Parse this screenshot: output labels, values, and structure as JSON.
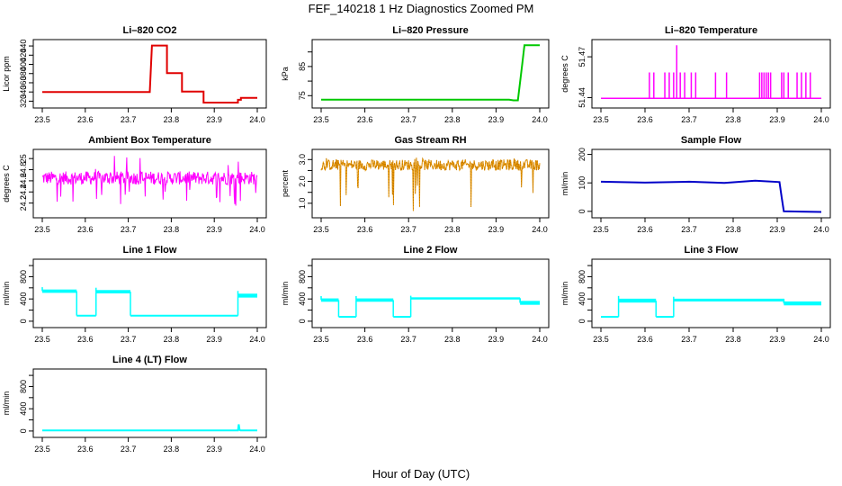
{
  "figure": {
    "title": "FEF_140218  1 Hz Diagnostics Zoomed PM",
    "xlabel": "Hour of Day (UTC)"
  },
  "chart_data": [
    {
      "type": "line",
      "title": "Li–820 CO2",
      "ylabel": "Licor ppm",
      "color": "#e00000",
      "xlim": [
        23.5,
        24.0
      ],
      "ylim": [
        313,
        446
      ],
      "yticks": [
        320,
        340,
        360,
        380,
        400,
        420,
        440
      ],
      "xticks": [
        "23.5",
        "23.6",
        "23.7",
        "23.8",
        "23.9",
        "24.0"
      ],
      "series": [
        {
          "x": [
            23.5,
            23.75,
            23.755,
            23.79,
            23.79,
            23.825,
            23.825,
            23.875,
            23.875,
            23.955,
            23.955,
            23.962,
            23.962,
            24.0
          ],
          "values": [
            340,
            340,
            441,
            441,
            381,
            381,
            341,
            341,
            317,
            317,
            323,
            323,
            327,
            327
          ]
        }
      ]
    },
    {
      "type": "line",
      "title": "Li–820 Pressure",
      "ylabel": "kPa",
      "color": "#00c800",
      "xlim": [
        23.5,
        24.0
      ],
      "ylim": [
        72,
        93
      ],
      "yticks": [
        75,
        80,
        85,
        90
      ],
      "ytick_labels": [
        "75",
        "",
        "85",
        ""
      ],
      "xticks": [
        "23.5",
        "23.6",
        "23.7",
        "23.8",
        "23.9",
        "24.0"
      ],
      "series": [
        {
          "x": [
            23.5,
            23.93,
            23.94,
            23.95,
            23.96,
            23.965,
            24.0
          ],
          "values": [
            73.6,
            73.6,
            73.4,
            73.4,
            86,
            92.3,
            92.3
          ]
        }
      ]
    },
    {
      "type": "line",
      "title": "Li–820 Temperature",
      "ylabel": "degrees C",
      "color": "#ff00ff",
      "xlim": [
        23.5,
        24.0
      ],
      "ylim": [
        51.435,
        51.48
      ],
      "yticks": [
        51.44,
        51.47
      ],
      "xticks": [
        "23.5",
        "23.6",
        "23.7",
        "23.8",
        "23.9",
        "24.0"
      ],
      "baseline": 51.4395,
      "spikes": [
        {
          "x": 23.61,
          "y": 51.4585
        },
        {
          "x": 23.62,
          "y": 51.4585
        },
        {
          "x": 23.645,
          "y": 51.4585
        },
        {
          "x": 23.655,
          "y": 51.4585
        },
        {
          "x": 23.665,
          "y": 51.4585
        },
        {
          "x": 23.672,
          "y": 51.4785
        },
        {
          "x": 23.68,
          "y": 51.4585
        },
        {
          "x": 23.69,
          "y": 51.4585
        },
        {
          "x": 23.705,
          "y": 51.4585
        },
        {
          "x": 23.715,
          "y": 51.4585
        },
        {
          "x": 23.76,
          "y": 51.4585
        },
        {
          "x": 23.785,
          "y": 51.4585
        },
        {
          "x": 23.86,
          "y": 51.4585
        },
        {
          "x": 23.865,
          "y": 51.4585
        },
        {
          "x": 23.87,
          "y": 51.4585
        },
        {
          "x": 23.875,
          "y": 51.4585
        },
        {
          "x": 23.88,
          "y": 51.4585
        },
        {
          "x": 23.885,
          "y": 51.4585
        },
        {
          "x": 23.91,
          "y": 51.4585
        },
        {
          "x": 23.915,
          "y": 51.4585
        },
        {
          "x": 23.925,
          "y": 51.4585
        },
        {
          "x": 23.945,
          "y": 51.4585
        },
        {
          "x": 23.955,
          "y": 51.4585
        },
        {
          "x": 23.965,
          "y": 51.4585
        },
        {
          "x": 23.975,
          "y": 51.4585
        }
      ]
    },
    {
      "type": "line",
      "title": "Ambient Box Temperature",
      "ylabel": "degrees C",
      "color": "#ff00ff",
      "xlim": [
        23.5,
        24.0
      ],
      "ylim": [
        24.0,
        25.1
      ],
      "yticks": [
        24.2,
        24.4,
        24.6,
        24.8,
        25.0
      ],
      "xticks": [
        "23.5",
        "23.6",
        "23.7",
        "23.8",
        "23.9",
        "24.0"
      ],
      "noise": {
        "center": 24.65,
        "amplitude": 0.12,
        "spike_low": 24.15,
        "spike_high": 25.05
      }
    },
    {
      "type": "line",
      "title": "Gas Stream RH",
      "ylabel": "percent",
      "color": "#e69500",
      "xlim": [
        23.5,
        24.0
      ],
      "ylim": [
        0.5,
        3.3
      ],
      "yticks": [
        1.0,
        1.5,
        2.0,
        2.5,
        3.0
      ],
      "ytick_labels": [
        "1.0",
        "",
        "2.0",
        "",
        "3.0"
      ],
      "xticks": [
        "23.5",
        "23.6",
        "23.7",
        "23.8",
        "23.9",
        "24.0"
      ],
      "noise": {
        "center": 2.75,
        "amplitude": 0.25,
        "spike_low": 0.6,
        "spike_high": 3.1
      }
    },
    {
      "type": "line",
      "title": "Sample Flow",
      "ylabel": "ml/min",
      "color": "#0000c8",
      "xlim": [
        23.5,
        24.0
      ],
      "ylim": [
        -10,
        205
      ],
      "yticks": [
        0,
        100,
        200
      ],
      "xticks": [
        "23.5",
        "23.6",
        "23.7",
        "23.8",
        "23.9",
        "24.0"
      ],
      "series": [
        {
          "x": [
            23.5,
            23.6,
            23.7,
            23.78,
            23.85,
            23.905,
            23.91,
            23.915,
            24.0
          ],
          "values": [
            104,
            101,
            104,
            100,
            108,
            103,
            50,
            0,
            -2
          ]
        }
      ]
    },
    {
      "type": "line",
      "title": "Line 1 Flow",
      "ylabel": "ml/min",
      "color": "#00ffff",
      "xlim": [
        23.5,
        24.0
      ],
      "ylim": [
        -50,
        1050
      ],
      "yticks": [
        0,
        200,
        400,
        600,
        800,
        1000
      ],
      "ytick_labels": [
        "0",
        "400",
        "800"
      ],
      "xticks": [
        "23.5",
        "23.6",
        "23.7",
        "23.8",
        "23.9",
        "24.0"
      ],
      "segments": [
        {
          "x0": 23.5,
          "x1": 23.58,
          "level": 540,
          "band": 60
        },
        {
          "x0": 23.58,
          "x1": 23.625,
          "level": 100,
          "band": 0
        },
        {
          "x0": 23.625,
          "x1": 23.705,
          "level": 530,
          "band": 60
        },
        {
          "x0": 23.705,
          "x1": 23.955,
          "level": 100,
          "band": 0
        },
        {
          "x0": 23.955,
          "x1": 24.0,
          "level": 460,
          "band": 70
        }
      ]
    },
    {
      "type": "line",
      "title": "Line 2 Flow",
      "ylabel": "ml/min",
      "color": "#00ffff",
      "xlim": [
        23.5,
        24.0
      ],
      "ylim": [
        -50,
        1050
      ],
      "yticks": [
        0,
        200,
        400,
        600,
        800,
        1000
      ],
      "ytick_labels": [
        "0",
        "400",
        "800"
      ],
      "xticks": [
        "23.5",
        "23.6",
        "23.7",
        "23.8",
        "23.9",
        "24.0"
      ],
      "segments": [
        {
          "x0": 23.5,
          "x1": 23.54,
          "level": 380,
          "band": 60
        },
        {
          "x0": 23.54,
          "x1": 23.58,
          "level": 80,
          "band": 0
        },
        {
          "x0": 23.58,
          "x1": 23.665,
          "level": 380,
          "band": 60
        },
        {
          "x0": 23.665,
          "x1": 23.705,
          "level": 80,
          "band": 0
        },
        {
          "x0": 23.705,
          "x1": 23.955,
          "level": 410,
          "band": 40
        },
        {
          "x0": 23.955,
          "x1": 24.0,
          "level": 330,
          "band": 70
        }
      ]
    },
    {
      "type": "line",
      "title": "Line 3 Flow",
      "ylabel": "ml/min",
      "color": "#00ffff",
      "xlim": [
        23.5,
        24.0
      ],
      "ylim": [
        -50,
        1050
      ],
      "yticks": [
        0,
        200,
        400,
        600,
        800,
        1000
      ],
      "ytick_labels": [
        "0",
        "400",
        "800"
      ],
      "xticks": [
        "23.5",
        "23.6",
        "23.7",
        "23.8",
        "23.9",
        "24.0"
      ],
      "segments": [
        {
          "x0": 23.5,
          "x1": 23.54,
          "level": 80,
          "band": 0
        },
        {
          "x0": 23.54,
          "x1": 23.625,
          "level": 370,
          "band": 70
        },
        {
          "x0": 23.625,
          "x1": 23.665,
          "level": 80,
          "band": 0
        },
        {
          "x0": 23.665,
          "x1": 23.915,
          "level": 380,
          "band": 50
        },
        {
          "x0": 23.915,
          "x1": 24.0,
          "level": 320,
          "band": 70
        }
      ]
    },
    {
      "type": "line",
      "title": "Line 4 (LT) Flow",
      "ylabel": "ml/min",
      "color": "#00ffff",
      "xlim": [
        23.5,
        24.0
      ],
      "ylim": [
        -50,
        1050
      ],
      "yticks": [
        0,
        200,
        400,
        600,
        800,
        1000
      ],
      "ytick_labels": [
        "0",
        "400",
        "800"
      ],
      "xticks": [
        "23.5",
        "23.6",
        "23.7",
        "23.8",
        "23.9",
        "24.0"
      ],
      "series": [
        {
          "x": [
            23.5,
            23.955,
            23.957,
            23.959,
            23.961,
            24.0
          ],
          "values": [
            10,
            10,
            120,
            20,
            10,
            10
          ]
        }
      ]
    }
  ]
}
